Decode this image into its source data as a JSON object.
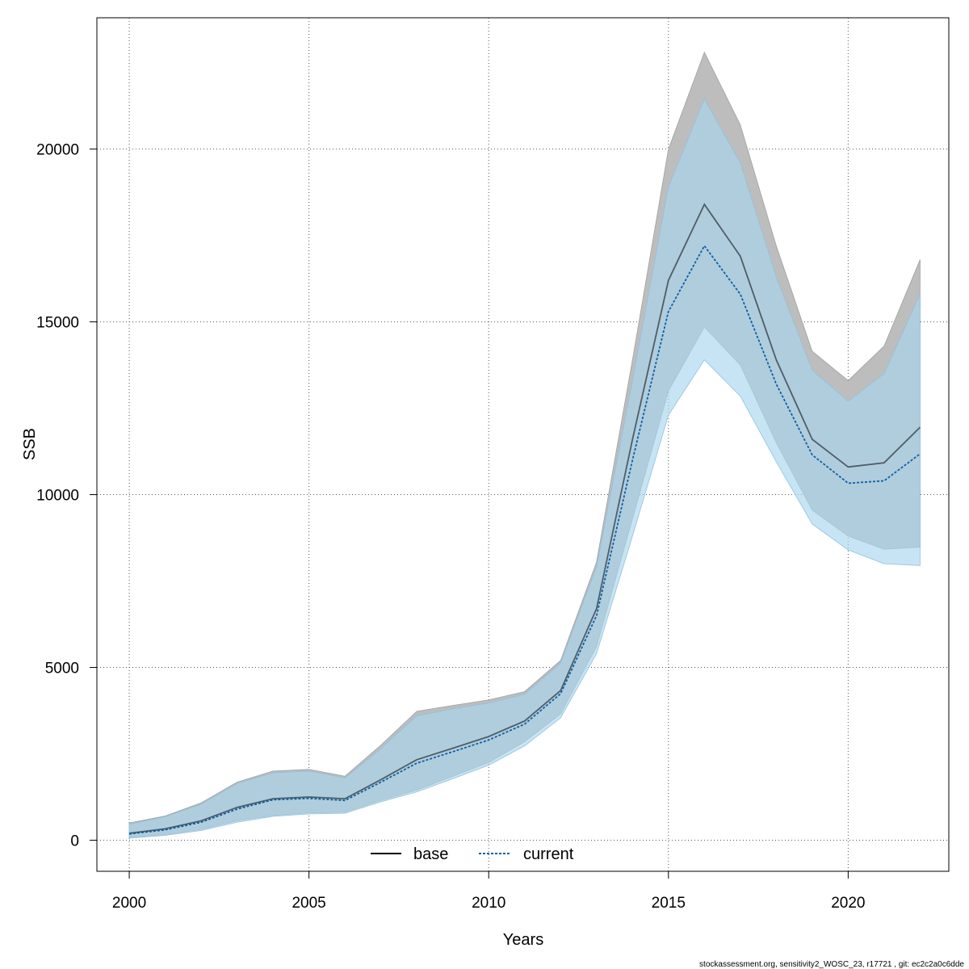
{
  "chart_data": {
    "type": "area",
    "xlabel": "Years",
    "ylabel": "SSB",
    "xlim": [
      1999.1,
      2022.8
    ],
    "ylim": [
      -900,
      23800
    ],
    "x_ticks": [
      2000,
      2005,
      2010,
      2015,
      2020
    ],
    "y_ticks": [
      0,
      5000,
      10000,
      15000,
      20000
    ],
    "grid": true,
    "legend_position": "bottom",
    "x": [
      2000,
      2001,
      2002,
      2003,
      2004,
      2005,
      2006,
      2007,
      2008,
      2009,
      2010,
      2011,
      2012,
      2013,
      2014,
      2015,
      2016,
      2017,
      2018,
      2019,
      2020,
      2021,
      2022
    ],
    "series": [
      {
        "name": "base",
        "color": "#000000",
        "band_color": "#bdbdbd",
        "line_style": "solid",
        "values": [
          200,
          330,
          560,
          950,
          1200,
          1250,
          1200,
          1750,
          2330,
          2660,
          3000,
          3450,
          4330,
          6700,
          11600,
          16200,
          18400,
          16900,
          13900,
          11600,
          10800,
          10920,
          11950
        ],
        "lower": [
          80,
          160,
          310,
          560,
          720,
          790,
          810,
          1150,
          1450,
          1850,
          2250,
          2850,
          3650,
          5600,
          9300,
          13000,
          14850,
          13750,
          11500,
          9550,
          8800,
          8420,
          8480
        ],
        "upper": [
          500,
          700,
          1080,
          1680,
          2000,
          2050,
          1850,
          2750,
          3730,
          3900,
          4060,
          4300,
          5200,
          8050,
          13900,
          20000,
          22800,
          20700,
          17200,
          14150,
          13300,
          14300,
          16800
        ]
      },
      {
        "name": "current",
        "color": "#0b5fa5",
        "band_color": "#a9d6f0",
        "line_style": "dotted",
        "values": [
          180,
          300,
          520,
          900,
          1170,
          1210,
          1150,
          1680,
          2230,
          2560,
          2900,
          3360,
          4240,
          6500,
          11000,
          15300,
          17200,
          15800,
          13200,
          11150,
          10330,
          10400,
          11180
        ],
        "lower": [
          60,
          140,
          280,
          520,
          690,
          760,
          780,
          1110,
          1400,
          1780,
          2170,
          2730,
          3540,
          5400,
          8800,
          12300,
          13900,
          12850,
          10950,
          9150,
          8400,
          8000,
          7950
        ],
        "upper": [
          460,
          680,
          1040,
          1640,
          1950,
          2000,
          1800,
          2650,
          3600,
          3800,
          3970,
          4220,
          5130,
          7900,
          13300,
          18900,
          21450,
          19600,
          16300,
          13600,
          12700,
          13500,
          15800
        ]
      }
    ]
  },
  "footer": "stockassessment.org, sensitivity2_WOSC_23, r17721 , git: ec2c2a0c6dde"
}
